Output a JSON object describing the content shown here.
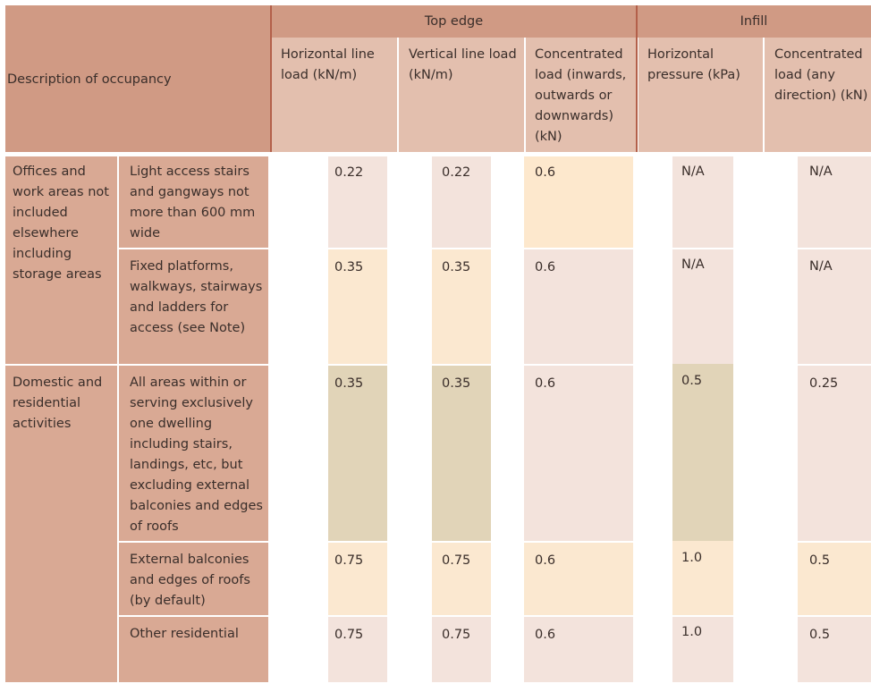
{
  "table": {
    "header": {
      "description": "Description of occupancy",
      "top_edge": "Top edge",
      "infill": "Infill",
      "columns": [
        "Horizontal line load (kN/m)",
        "Vertical line load (kN/m)",
        "Concentrated load (inwards, outwards or downwards) (kN)",
        "Horizontal pressure (kPa)",
        "Concentrated load (any direction) (kN)"
      ]
    },
    "groups": [
      {
        "label": "Offices and work areas not included elsewhere including storage areas"
      },
      {
        "label": "Domestic and residential activities"
      }
    ],
    "rows": [
      {
        "description": "Light access stairs and gangways not more than 600 mm wide",
        "values": [
          "0.22",
          "0.22",
          "0.6",
          "N/A",
          "N/A"
        ]
      },
      {
        "description": "Fixed platforms, walkways, stairways and ladders for access (see Note)",
        "values": [
          "0.35",
          "0.35",
          "0.6",
          "N/A",
          "N/A"
        ]
      },
      {
        "description": "All areas within or serving exclusively one dwelling including stairs, landings, etc, but excluding external balconies and edges of roofs",
        "values": [
          "0.35",
          "0.35",
          "0.6",
          "0.5",
          "0.25"
        ]
      },
      {
        "description": "External balconies and edges of roofs (by default)",
        "values": [
          "0.75",
          "0.75",
          "0.6",
          "1.0",
          "0.5"
        ]
      },
      {
        "description": "Other residential",
        "values": [
          "0.75",
          "0.75",
          "0.6",
          "1.0",
          "0.5"
        ]
      }
    ]
  }
}
